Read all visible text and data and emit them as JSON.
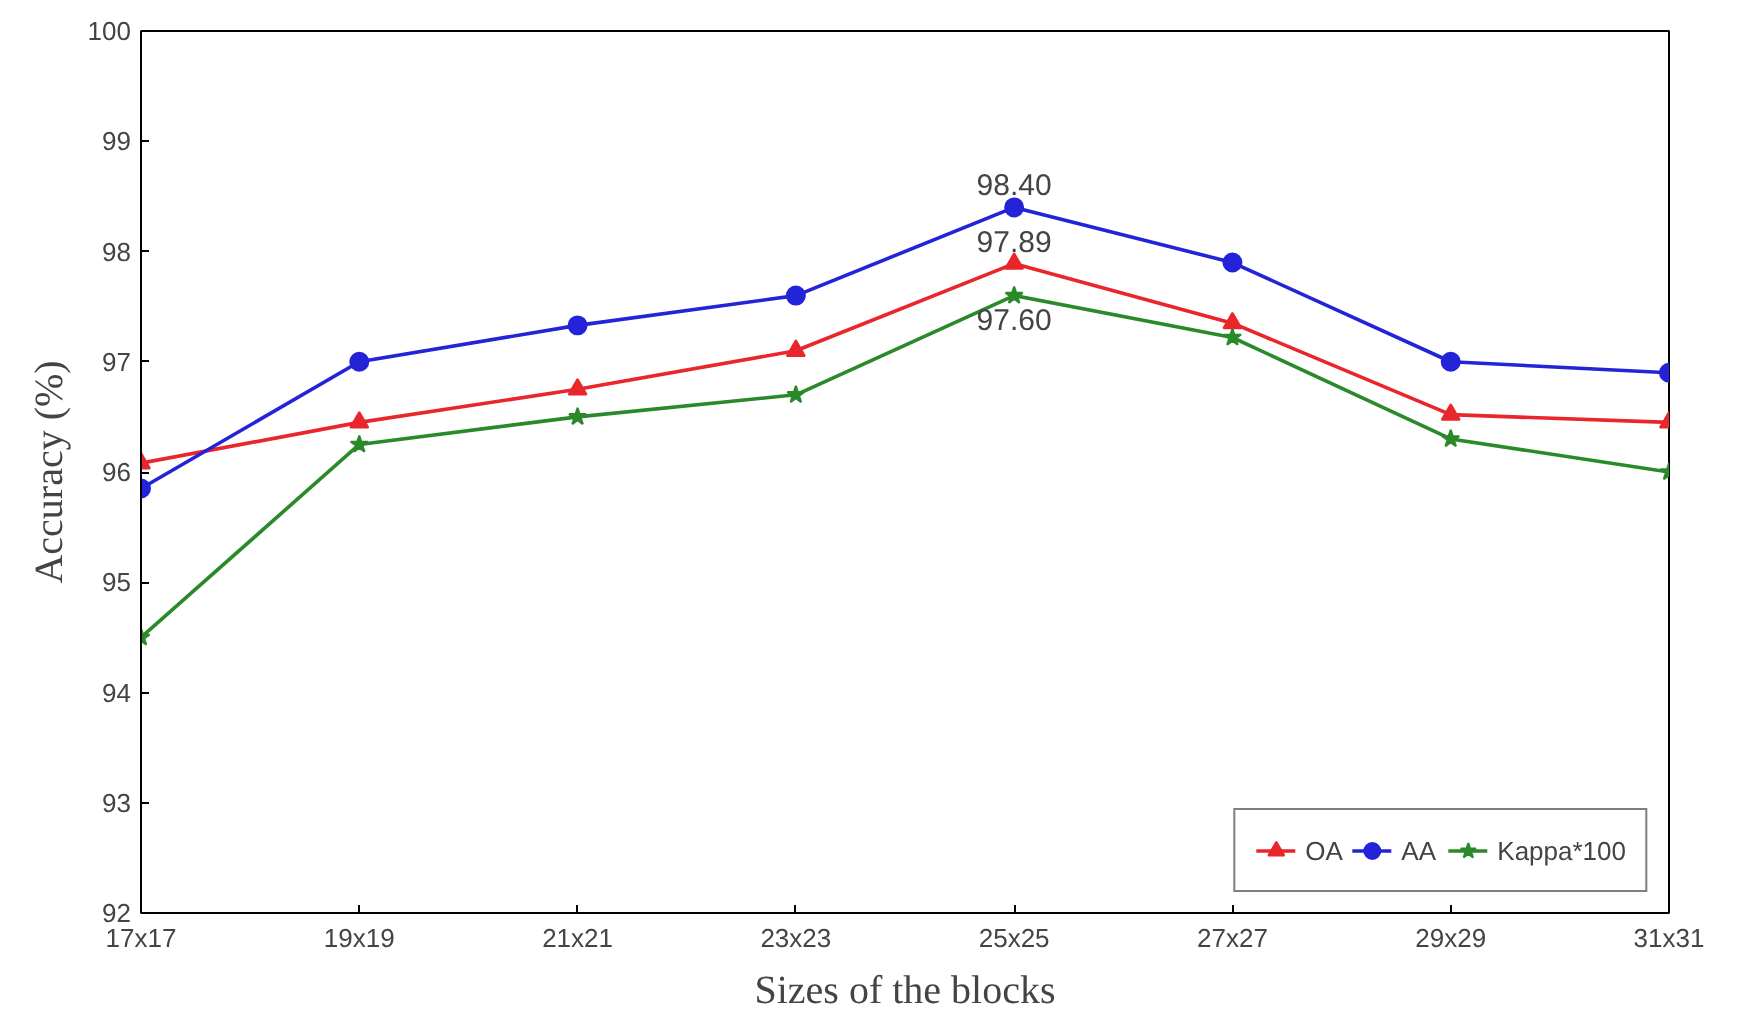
{
  "chart_data": {
    "type": "line",
    "xlabel": "Sizes of the blocks",
    "ylabel": "Accuracy (%)",
    "categories": [
      "17x17",
      "19x19",
      "21x21",
      "23x23",
      "25x25",
      "27x27",
      "29x29",
      "31x31"
    ],
    "ylim": [
      92,
      100
    ],
    "yticks": [
      92,
      93,
      94,
      95,
      96,
      97,
      98,
      99,
      100
    ],
    "grid": false,
    "legend": "bottom right",
    "line_style": "solid",
    "series": [
      {
        "name": "OA",
        "color": "#e8262b",
        "marker": "triangle",
        "values": [
          96.08,
          96.45,
          96.75,
          97.1,
          97.89,
          97.35,
          96.52,
          96.45
        ],
        "value_labels": [
          null,
          null,
          null,
          null,
          "97.89",
          null,
          null,
          null
        ]
      },
      {
        "name": "AA",
        "color": "#2323d8",
        "marker": "circle",
        "values": [
          95.85,
          97.0,
          97.33,
          97.6,
          98.4,
          97.9,
          97.0,
          96.9
        ],
        "value_labels": [
          null,
          null,
          null,
          null,
          "98.40",
          null,
          null,
          null
        ]
      },
      {
        "name": "Kappa*100",
        "color": "#2a8a2a",
        "marker": "star",
        "values": [
          94.5,
          96.25,
          96.5,
          96.7,
          97.6,
          97.22,
          96.3,
          96.0
        ],
        "value_labels": [
          null,
          null,
          null,
          null,
          "97.60",
          null,
          null,
          null
        ]
      }
    ]
  }
}
